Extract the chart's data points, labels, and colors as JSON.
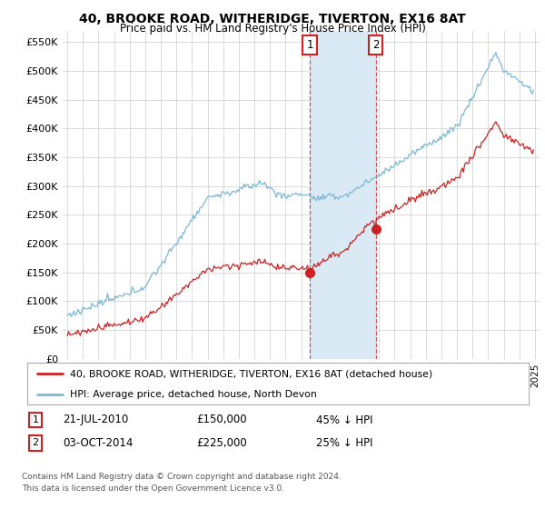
{
  "title": "40, BROOKE ROAD, WITHERIDGE, TIVERTON, EX16 8AT",
  "subtitle": "Price paid vs. HM Land Registry's House Price Index (HPI)",
  "ylim": [
    0,
    570000
  ],
  "yticks": [
    0,
    50000,
    100000,
    150000,
    200000,
    250000,
    300000,
    350000,
    400000,
    450000,
    500000,
    550000
  ],
  "xlim_start": 1994.7,
  "xlim_end": 2025.3,
  "hpi_color": "#7bb8d4",
  "price_color": "#cc2222",
  "marker1_date": 2010.55,
  "marker1_price": 150000,
  "marker1_label": "1",
  "marker2_date": 2014.78,
  "marker2_price": 225000,
  "marker2_label": "2",
  "legend_line1": "40, BROOKE ROAD, WITHERIDGE, TIVERTON, EX16 8AT (detached house)",
  "legend_line2": "HPI: Average price, detached house, North Devon",
  "table_row1_num": "1",
  "table_row1_date": "21-JUL-2010",
  "table_row1_price": "£150,000",
  "table_row1_hpi": "45% ↓ HPI",
  "table_row2_num": "2",
  "table_row2_date": "03-OCT-2014",
  "table_row2_price": "£225,000",
  "table_row2_hpi": "25% ↓ HPI",
  "footnote1": "Contains HM Land Registry data © Crown copyright and database right 2024.",
  "footnote2": "This data is licensed under the Open Government Licence v3.0.",
  "bg_color": "#ffffff",
  "grid_color": "#cccccc",
  "shade_color": "#daeaf5"
}
